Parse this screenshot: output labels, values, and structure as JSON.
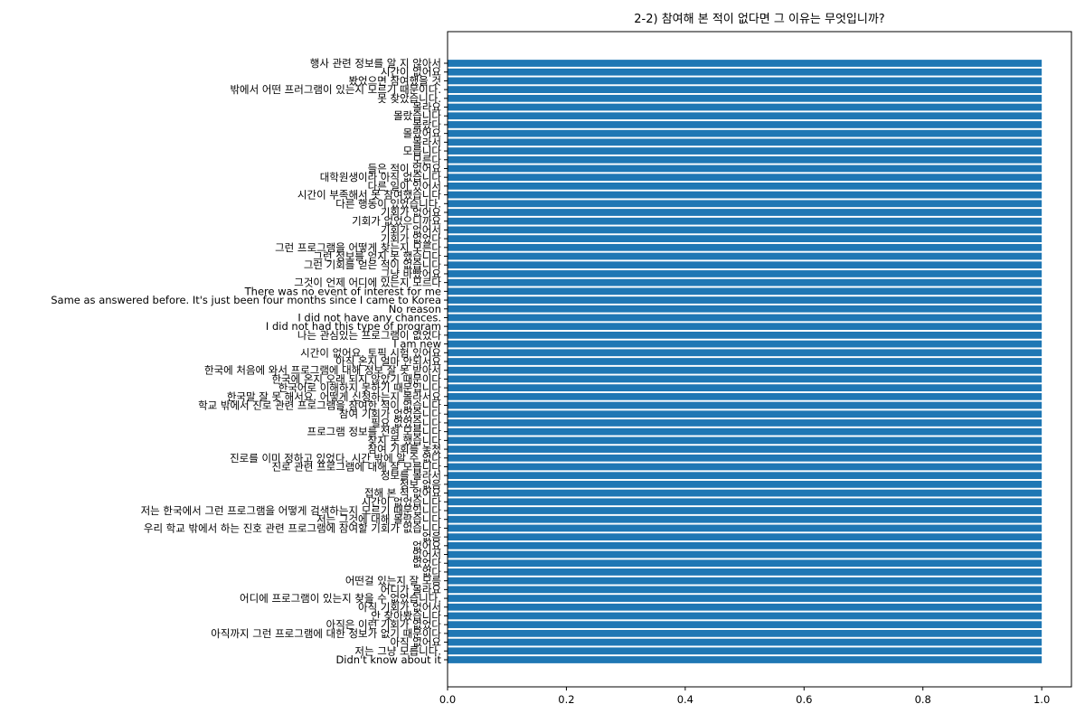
{
  "chart_data": {
    "type": "bar",
    "orientation": "horizontal",
    "title": "2-2) 참여해 본 적이 없다면 그 이유는 무엇입니까?",
    "xlabel": "",
    "ylabel": "",
    "xlim": [
      0.0,
      1.05
    ],
    "xticks": [
      0.0,
      0.2,
      0.4,
      0.6,
      0.8,
      1.0
    ],
    "xtick_labels": [
      "0.0",
      "0.2",
      "0.4",
      "0.6",
      "0.8",
      "1.0"
    ],
    "bar_color": "#1f77b4",
    "grid": false,
    "categories": [
      "행사 관련 정보를 알 지 않아서",
      "시간이 없어요",
      "봤었으면 참여했을 것",
      "밖에서 어떤 프러그램이 있는지 모르기 때문이다.",
      "못 찾았습니다.",
      "몰라요",
      "몰랐습니다",
      "몰랐다",
      "몰랐어요",
      "몰라서",
      "모릅니다",
      "모른다",
      "들은 적이 없어요",
      "대학원생이라 아직 없습니다",
      "다른 일이 있어서",
      "시간이 부족해서 못 참여했습니다",
      "다른 행동이 있었습니다.",
      "기회가 없어요",
      "기회가 없었으니까요",
      "기회가 없어서",
      "기회가 없었다",
      "그런 프로그램을 어떻게 찾는지 모른다",
      "그런 정보를 얻지 못 했습니다",
      "그런 기회를 얻은 적이 없습니다",
      "그냥 바빴어요",
      "그것이 언제 어디에 있는지 모르다",
      "There was no event of interest for me",
      "Same as answered before. It's just been four months since I came to Korea",
      "No reason",
      "I did not have any chances.",
      "I did not had this type of program",
      "나는 관심있는 프로그램이 없었다",
      "I am new",
      "시간이 없어요. 토픽 시험 있어요",
      "아직 온지 얼마 안되서요",
      "한국에 처음에 와서 프로그램에 대해 정보 잘 못 받아서",
      "한국에 온지 오래 되지 않았기 때문이다",
      "한국어로 이해하지 못하기 때문입니다",
      "한국말 잘 못 해서요. 어떻게 신청하는지 몰라서요",
      "학교 밖에서 진로 관련 프로그램을 참여한 적이 없습니다",
      "참여 기회가 없었습니다",
      "필요 없었습니다",
      "프로그램 정보를 전혀 모릅니다",
      "찾지 못 했습니다",
      "참여 기회를 놓쳤",
      "진로를 이미 정하고 있었다. 시간 밖에 알 수 없다",
      "진로 관련 프로그램에 대해 잘 모릅니다",
      "정보를 몰라서",
      "정보 없음",
      "접해 본 적 없어요",
      "시간이 없었습니다",
      "저는 한국에서 그런 프로그램을 어떻게 검색하는지 모르기 때문입니다",
      "저는 그것에 대해 몰랐습니다",
      "우리 학교 밖에서 하는 진호 관련 프로그램에 참여할 기회가 없습니다",
      "없음",
      "없어요",
      "없어서",
      "없었다",
      "없다",
      "어떤걸 있는지 잘 모름",
      "어디가 몰라요",
      "어디에 프로그램이 있는지 찾을 수 없었습니다.",
      "아직 기회가 없어서",
      "안 찾아봤습니다",
      "아직은 이런 기회가 없었다",
      "아직까지 그런 프로그램에 대한 정보가 없기 때문이다",
      "아직 없어요",
      "저는 그냥 모릅니다.",
      "Didn't know about it"
    ],
    "values": [
      1,
      1,
      1,
      1,
      1,
      1,
      1,
      1,
      1,
      1,
      1,
      1,
      1,
      1,
      1,
      1,
      1,
      1,
      1,
      1,
      1,
      1,
      1,
      1,
      1,
      1,
      1,
      1,
      1,
      1,
      1,
      1,
      1,
      1,
      1,
      1,
      1,
      1,
      1,
      1,
      1,
      1,
      1,
      1,
      1,
      1,
      1,
      1,
      1,
      1,
      1,
      1,
      1,
      1,
      1,
      1,
      1,
      1,
      1,
      1,
      1,
      1,
      1,
      1,
      1,
      1,
      1,
      1,
      1
    ]
  }
}
